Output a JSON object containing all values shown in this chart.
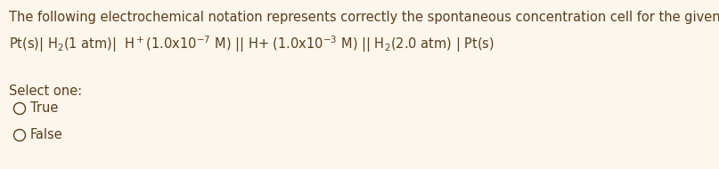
{
  "background_color": "#fdf6ec",
  "text_color": "#5a3e1b",
  "line1": "The following electrochemical notation represents correctly the spontaneous concentration cell for the given substances:",
  "line2_mathtext": "Pt(s)| H$_2$(1 atm)|  H$^+$(1.0x10$^{-7}$ M) || H+ (1.0x10$^{-3}$ M) || H$_2$(2.0 atm) | Pt(s)",
  "select_label": "Select one:",
  "option_true": "True",
  "option_false": "False",
  "font_size": 10.5,
  "fig_width": 8.07,
  "fig_height": 1.9,
  "dpi": 100
}
